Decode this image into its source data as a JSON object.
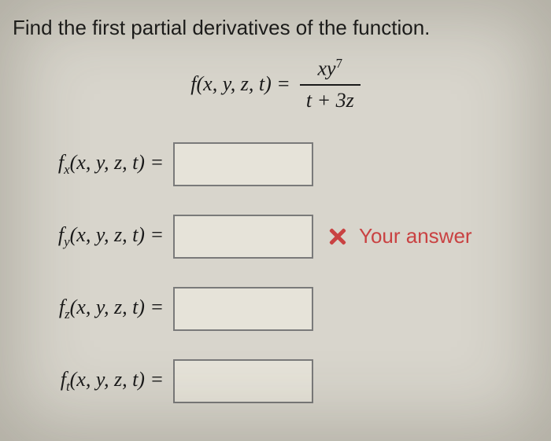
{
  "prompt": "Find the first partial derivatives of the function.",
  "function_def": {
    "lhs": "f(x, y, z, t) =",
    "numerator_html": "xy<sup>7</sup>",
    "denominator_html": "t + 3z"
  },
  "rows": [
    {
      "label_html": "f<sub>x</sub>(x, y, z, t) =",
      "has_feedback": false
    },
    {
      "label_html": "f<sub>y</sub>(x, y, z, t) =",
      "has_feedback": true
    },
    {
      "label_html": "f<sub>z</sub>(x, y, z, t) =",
      "has_feedback": false
    },
    {
      "label_html": "f<sub>t</sub>(x, y, z, t) =",
      "has_feedback": false
    }
  ],
  "feedback": {
    "text": "Your answer",
    "color": "#c94242"
  },
  "colors": {
    "background": "#d8d5cc",
    "text": "#1a1a1a",
    "box_border": "#7a7a7a",
    "box_bg": "#e6e3d9"
  }
}
